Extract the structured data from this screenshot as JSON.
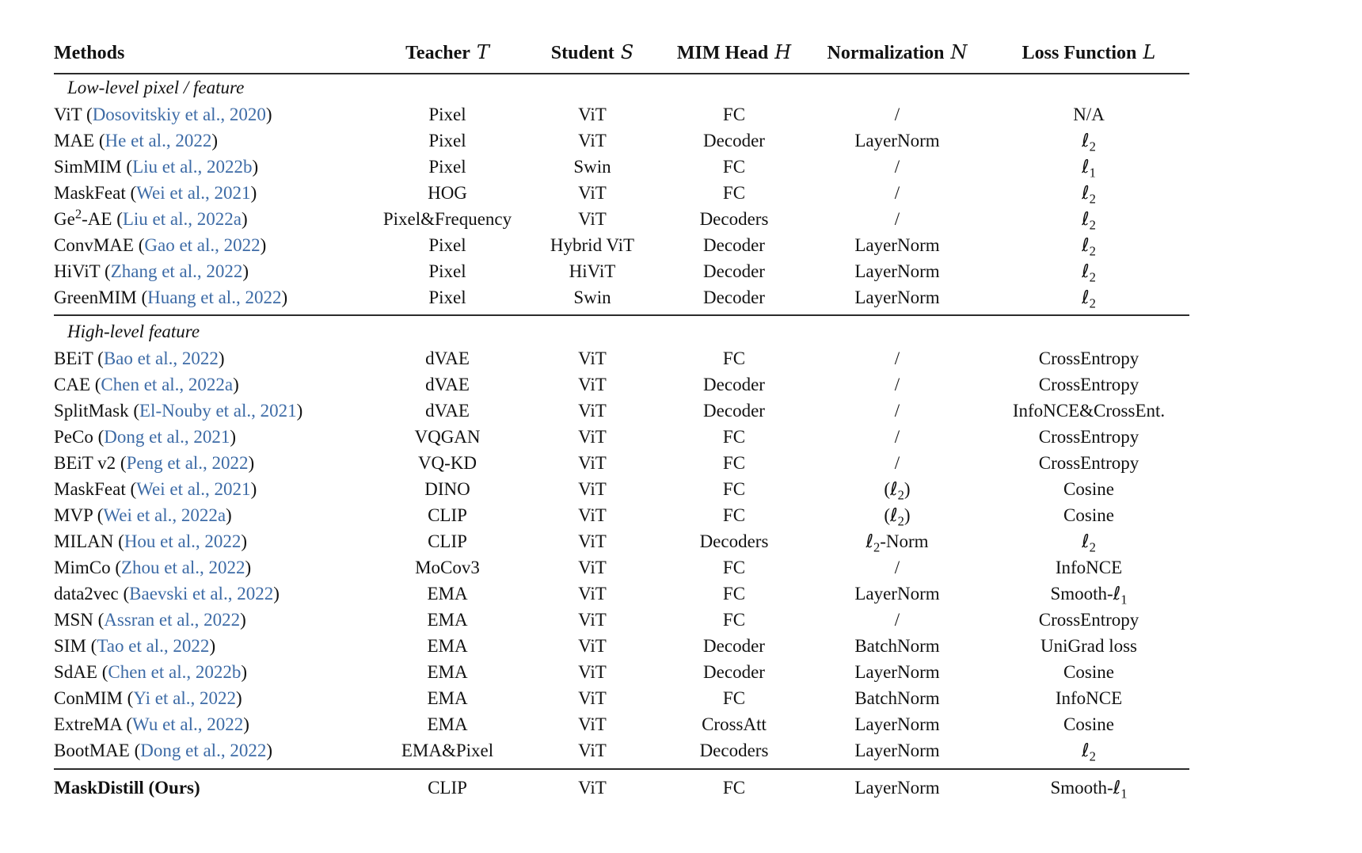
{
  "table": {
    "link_color": "#3d6ba6",
    "headers": [
      {
        "label": "Methods",
        "symbol": ""
      },
      {
        "label": "Teacher",
        "symbol": "T"
      },
      {
        "label": "Student",
        "symbol": "S"
      },
      {
        "label": "MIM Head",
        "symbol": "H"
      },
      {
        "label": "Normalization",
        "symbol": "N"
      },
      {
        "label": "Loss Function",
        "symbol": "L"
      }
    ],
    "sections": [
      {
        "label": "Low-level pixel / feature",
        "rows": [
          {
            "method": "ViT",
            "cite": "Dosovitskiy et al., 2020",
            "teacher": "Pixel",
            "student": "ViT",
            "head": "FC",
            "norm": "/",
            "loss": "N/A"
          },
          {
            "method": "MAE",
            "cite": "He et al., 2022",
            "teacher": "Pixel",
            "student": "ViT",
            "head": "Decoder",
            "norm": "LayerNorm",
            "loss": "ℓ_2"
          },
          {
            "method": "SimMIM",
            "cite": "Liu et al., 2022b",
            "teacher": "Pixel",
            "student": "Swin",
            "head": "FC",
            "norm": "/",
            "loss": "ℓ_1"
          },
          {
            "method": "MaskFeat",
            "cite": "Wei et al., 2021",
            "teacher": "HOG",
            "student": "ViT",
            "head": "FC",
            "norm": "/",
            "loss": "ℓ_2"
          },
          {
            "method": "Ge^2-AE",
            "cite": "Liu et al., 2022a",
            "teacher": "Pixel&Frequency",
            "student": "ViT",
            "head": "Decoders",
            "norm": "/",
            "loss": "ℓ_2"
          },
          {
            "method": "ConvMAE",
            "cite": "Gao et al., 2022",
            "teacher": "Pixel",
            "student": "Hybrid ViT",
            "head": "Decoder",
            "norm": "LayerNorm",
            "loss": "ℓ_2"
          },
          {
            "method": "HiViT",
            "cite": "Zhang et al., 2022",
            "teacher": "Pixel",
            "student": "HiViT",
            "head": "Decoder",
            "norm": "LayerNorm",
            "loss": "ℓ_2"
          },
          {
            "method": "GreenMIM",
            "cite": "Huang et al., 2022",
            "teacher": "Pixel",
            "student": "Swin",
            "head": "Decoder",
            "norm": "LayerNorm",
            "loss": "ℓ_2"
          }
        ]
      },
      {
        "label": "High-level feature",
        "rows": [
          {
            "method": "BEiT",
            "cite": "Bao et al., 2022",
            "teacher": "dVAE",
            "student": "ViT",
            "head": "FC",
            "norm": "/",
            "loss": "CrossEntropy"
          },
          {
            "method": "CAE",
            "cite": "Chen et al., 2022a",
            "teacher": "dVAE",
            "student": "ViT",
            "head": "Decoder",
            "norm": "/",
            "loss": "CrossEntropy"
          },
          {
            "method": "SplitMask",
            "cite": "El-Nouby et al., 2021",
            "teacher": "dVAE",
            "student": "ViT",
            "head": "Decoder",
            "norm": "/",
            "loss": "InfoNCE&CrossEnt."
          },
          {
            "method": "PeCo",
            "cite": "Dong et al., 2021",
            "teacher": "VQGAN",
            "student": "ViT",
            "head": "FC",
            "norm": "/",
            "loss": "CrossEntropy"
          },
          {
            "method": "BEiT v2",
            "cite": "Peng et al., 2022",
            "teacher": "VQ-KD",
            "student": "ViT",
            "head": "FC",
            "norm": "/",
            "loss": "CrossEntropy"
          },
          {
            "method": "MaskFeat",
            "cite": "Wei et al., 2021",
            "teacher": "DINO",
            "student": "ViT",
            "head": "FC",
            "norm": "(ℓ_2)",
            "loss": "Cosine"
          },
          {
            "method": "MVP",
            "cite": "Wei et al., 2022a",
            "teacher": "CLIP",
            "student": "ViT",
            "head": "FC",
            "norm": "(ℓ_2)",
            "loss": "Cosine"
          },
          {
            "method": "MILAN",
            "cite": "Hou et al., 2022",
            "teacher": "CLIP",
            "student": "ViT",
            "head": "Decoders",
            "norm": "ℓ_2-Norm",
            "loss": "ℓ_2"
          },
          {
            "method": "MimCo",
            "cite": "Zhou et al., 2022",
            "teacher": "MoCov3",
            "student": "ViT",
            "head": "FC",
            "norm": "/",
            "loss": "InfoNCE"
          },
          {
            "method": "data2vec",
            "cite": "Baevski et al., 2022",
            "teacher": "EMA",
            "student": "ViT",
            "head": "FC",
            "norm": "LayerNorm",
            "loss": "Smooth-ℓ_1"
          },
          {
            "method": "MSN",
            "cite": "Assran et al., 2022",
            "teacher": "EMA",
            "student": "ViT",
            "head": "FC",
            "norm": "/",
            "loss": "CrossEntropy"
          },
          {
            "method": "SIM",
            "cite": "Tao et al., 2022",
            "teacher": "EMA",
            "student": "ViT",
            "head": "Decoder",
            "norm": "BatchNorm",
            "loss": "UniGrad loss"
          },
          {
            "method": "SdAE",
            "cite": "Chen et al., 2022b",
            "teacher": "EMA",
            "student": "ViT",
            "head": "Decoder",
            "norm": "LayerNorm",
            "loss": "Cosine"
          },
          {
            "method": "ConMIM",
            "cite": "Yi et al., 2022",
            "teacher": "EMA",
            "student": "ViT",
            "head": "FC",
            "norm": "BatchNorm",
            "loss": "InfoNCE"
          },
          {
            "method": "ExtreMA",
            "cite": "Wu et al., 2022",
            "teacher": "EMA",
            "student": "ViT",
            "head": "CrossAtt",
            "norm": "LayerNorm",
            "loss": "Cosine"
          },
          {
            "method": "BootMAE",
            "cite": "Dong et al., 2022",
            "teacher": "EMA&Pixel",
            "student": "ViT",
            "head": "Decoders",
            "norm": "LayerNorm",
            "loss": "ℓ_2"
          }
        ]
      }
    ],
    "ours_row": {
      "method": "MaskDistill (Ours)",
      "cite": null,
      "teacher": "CLIP",
      "student": "ViT",
      "head": "FC",
      "norm": "LayerNorm",
      "loss": "Smooth-ℓ_1"
    }
  }
}
